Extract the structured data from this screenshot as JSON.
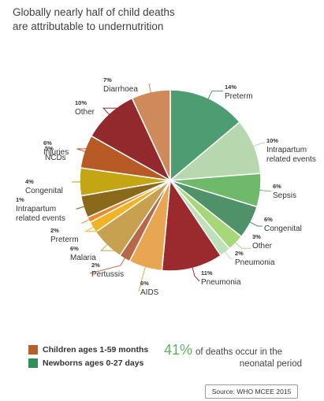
{
  "title_line1": "Globally nearly half of child deaths",
  "title_line2": "are attributable to undernutrition",
  "chart_data": {
    "type": "pie",
    "slices": [
      {
        "label": "Preterm",
        "value": 14,
        "pct": "14%",
        "group": "newborn",
        "color": "#4e9c72"
      },
      {
        "label_lines": [
          "Intrapartum",
          "related events"
        ],
        "value": 10,
        "pct": "10%",
        "group": "newborn",
        "color": "#b7d8ae"
      },
      {
        "label": "Sepsis",
        "value": 6,
        "pct": "6%",
        "group": "newborn",
        "color": "#6fba6a"
      },
      {
        "label": "Congenital",
        "value": 6,
        "pct": "6%",
        "group": "newborn",
        "color": "#4f9169"
      },
      {
        "label": "Other",
        "value": 3,
        "pct": "3%",
        "group": "newborn",
        "color": "#a6d779"
      },
      {
        "label": "Pneumonia",
        "value": 2,
        "pct": "2%",
        "group": "newborn",
        "color": "#bfe0ba"
      },
      {
        "label": "Pneumonia",
        "value": 11,
        "pct": "11%",
        "group": "child",
        "color": "#9b2a2f"
      },
      {
        "label": "AIDS",
        "value": 6,
        "pct": "6%",
        "group": "child",
        "color": "#e8a552"
      },
      {
        "label": "Pertussis",
        "value": 2,
        "pct": "2%",
        "group": "child",
        "color": "#b8684a"
      },
      {
        "label": "Malaria",
        "value": 6,
        "pct": "6%",
        "group": "child",
        "color": "#c7a050"
      },
      {
        "label": "Preterm",
        "value": 2,
        "pct": "2%",
        "group": "child",
        "color": "#f0b323"
      },
      {
        "label_lines": [
          "Intrapartum",
          "related events"
        ],
        "value": 1,
        "pct": "1%",
        "group": "child",
        "color": "#e98a30"
      },
      {
        "label": "Congenital",
        "value": 4,
        "pct": "4%",
        "group": "child",
        "color": "#8a6a1a"
      },
      {
        "label": "NCDs",
        "value": 5,
        "pct": "5%",
        "group": "child",
        "color": "#c4a514"
      },
      {
        "label": "Injuries",
        "value": 6,
        "pct": "6%",
        "group": "child",
        "color": "#b85a26"
      },
      {
        "label": "Other",
        "value": 10,
        "pct": "10%",
        "group": "child",
        "color": "#922a2d"
      },
      {
        "label": "Diarrhoea",
        "value": 7,
        "pct": "7%",
        "group": "child",
        "color": "#cf8a5c"
      }
    ]
  },
  "legend": {
    "items": [
      {
        "label": "Children ages 1-59 months",
        "color": "#b8602c"
      },
      {
        "label": "Newborns ages 0-27 days",
        "color": "#2f8f58"
      }
    ]
  },
  "stat": {
    "percent": "41%",
    "line1_rest": "of deaths occur in the",
    "line2": "neonatal period"
  },
  "source": "Source: WHO MCEE 2015"
}
